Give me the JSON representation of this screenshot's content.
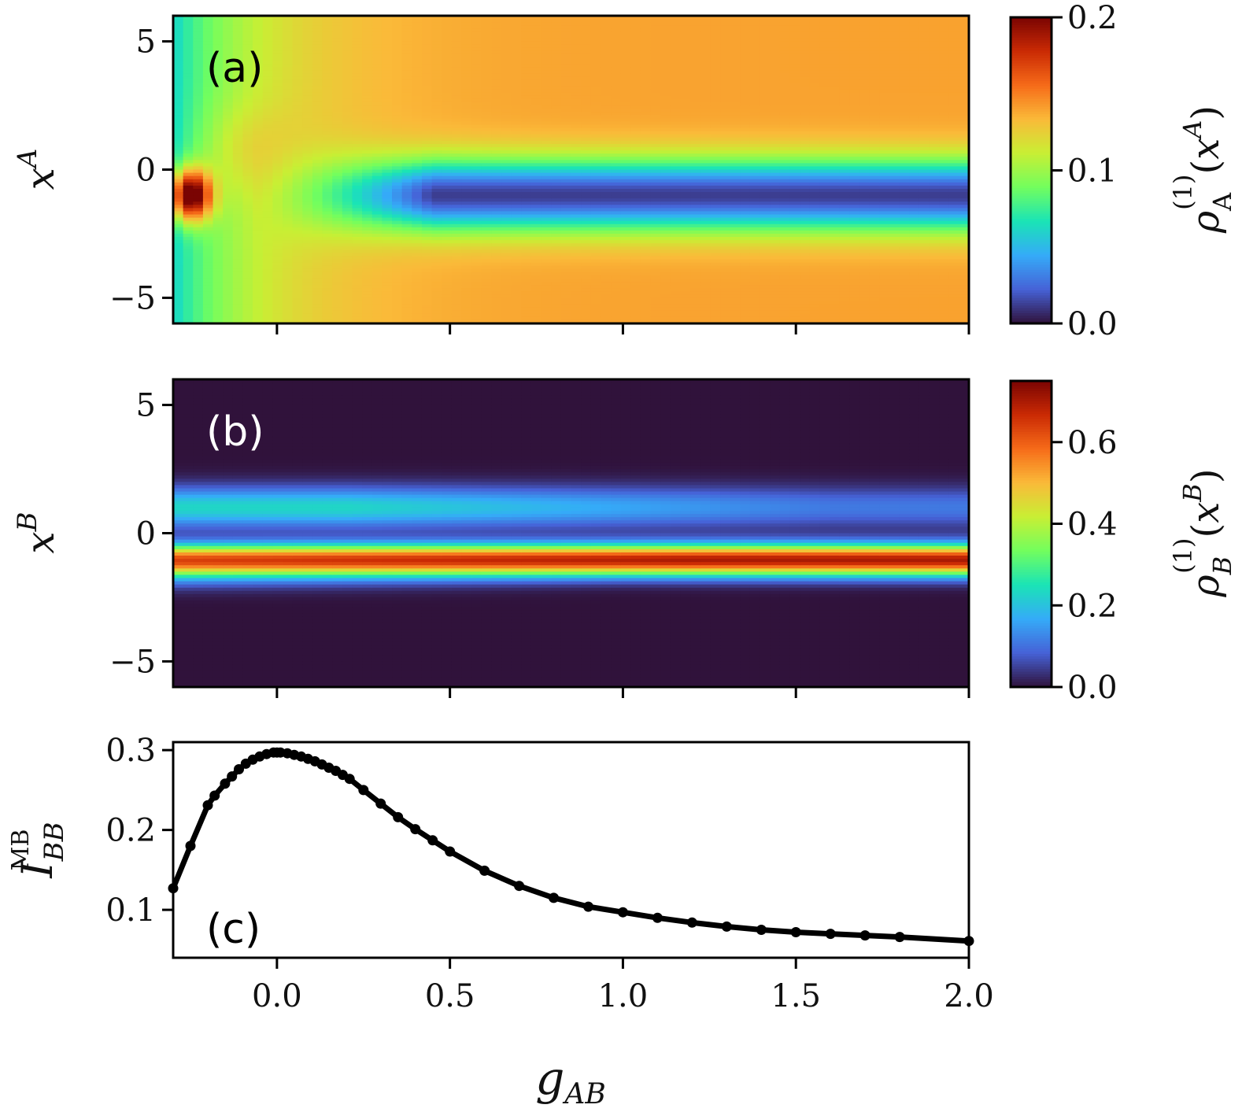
{
  "colors": {
    "colormap": [
      "#30123b",
      "#4662d7",
      "#35abf8",
      "#1ae4b6",
      "#72fe5e",
      "#c8ef34",
      "#faba39",
      "#f66b19",
      "#ca2a04",
      "#7a0403"
    ],
    "line": "#000000",
    "tag_dark": "#000000",
    "tag_light": "#ffffff"
  },
  "chart_data": [
    {
      "id": "a",
      "type": "heatmap",
      "panel_label": "(a)",
      "ylabel": "x^A",
      "colorbar_label": "ρ_A^(1)(x^A)",
      "x_range": [
        -0.3,
        2.0
      ],
      "y_range": [
        -6,
        6
      ],
      "x_ticks": [
        0.0,
        0.5,
        1.0,
        1.5,
        2.0
      ],
      "y_ticks": [
        5,
        0,
        -5
      ],
      "y_tick_labels": [
        "5",
        "0",
        "−5"
      ],
      "c_range": [
        0.0,
        0.2
      ],
      "c_ticks": [
        0.2,
        0.1,
        0.0
      ],
      "c_tick_labels": [
        "0.2",
        "0.1",
        "0.0"
      ],
      "field": "Broad background density ~0.14 near edges at large g_AB, 0.06 near g_AB=-0.3; dip to ~0.01 centred at x≈-1 for g_AB>0.3; sharp peak ~0.19 at x≈-1 for g_AB≈-0.25"
    },
    {
      "id": "b",
      "type": "heatmap",
      "panel_label": "(b)",
      "ylabel": "x^B",
      "colorbar_label": "ρ_B^(1)(x^B)",
      "x_range": [
        -0.3,
        2.0
      ],
      "y_range": [
        -6,
        6
      ],
      "x_ticks": [
        0.0,
        0.5,
        1.0,
        1.5,
        2.0
      ],
      "y_ticks": [
        5,
        0,
        -5
      ],
      "y_tick_labels": [
        "5",
        "0",
        "−5"
      ],
      "c_range": [
        0.0,
        0.75
      ],
      "c_ticks": [
        0.6,
        0.4,
        0.2,
        0.0
      ],
      "c_tick_labels": [
        "0.6",
        "0.4",
        "0.2",
        "0.0"
      ],
      "field": "Narrow high-density line ~0.65-0.75 at x≈-1; weaker lobe ~0.2-0.25 at x≈+1 fading to ~0.1 with g_AB; near zero elsewhere"
    },
    {
      "id": "c",
      "type": "line",
      "panel_label": "(c)",
      "xlabel": "g_AB",
      "ylabel": "I_BB^MB",
      "x_range": [
        -0.3,
        2.0
      ],
      "y_range": [
        0.04,
        0.31
      ],
      "x_ticks": [
        0.0,
        0.5,
        1.0,
        1.5,
        2.0
      ],
      "x_tick_labels": [
        "0.0",
        "0.5",
        "1.0",
        "1.5",
        "2.0"
      ],
      "y_ticks": [
        0.3,
        0.2,
        0.1
      ],
      "y_tick_labels": [
        "0.3",
        "0.2",
        "0.1"
      ],
      "series": [
        {
          "name": "I_BB^MB",
          "x": [
            -0.3,
            -0.25,
            -0.2,
            -0.18,
            -0.15,
            -0.13,
            -0.11,
            -0.09,
            -0.07,
            -0.05,
            -0.03,
            -0.01,
            0.0,
            0.01,
            0.03,
            0.05,
            0.07,
            0.09,
            0.11,
            0.13,
            0.15,
            0.17,
            0.19,
            0.21,
            0.25,
            0.3,
            0.35,
            0.4,
            0.45,
            0.5,
            0.6,
            0.7,
            0.8,
            0.9,
            1.0,
            1.1,
            1.2,
            1.3,
            1.4,
            1.5,
            1.6,
            1.7,
            1.8,
            2.0
          ],
          "values": [
            0.127,
            0.18,
            0.231,
            0.243,
            0.258,
            0.267,
            0.276,
            0.283,
            0.288,
            0.292,
            0.295,
            0.297,
            0.297,
            0.297,
            0.296,
            0.294,
            0.292,
            0.289,
            0.286,
            0.282,
            0.278,
            0.274,
            0.269,
            0.264,
            0.25,
            0.233,
            0.216,
            0.201,
            0.187,
            0.173,
            0.149,
            0.13,
            0.115,
            0.104,
            0.097,
            0.09,
            0.084,
            0.079,
            0.075,
            0.072,
            0.07,
            0.068,
            0.066,
            0.061
          ]
        }
      ]
    }
  ]
}
